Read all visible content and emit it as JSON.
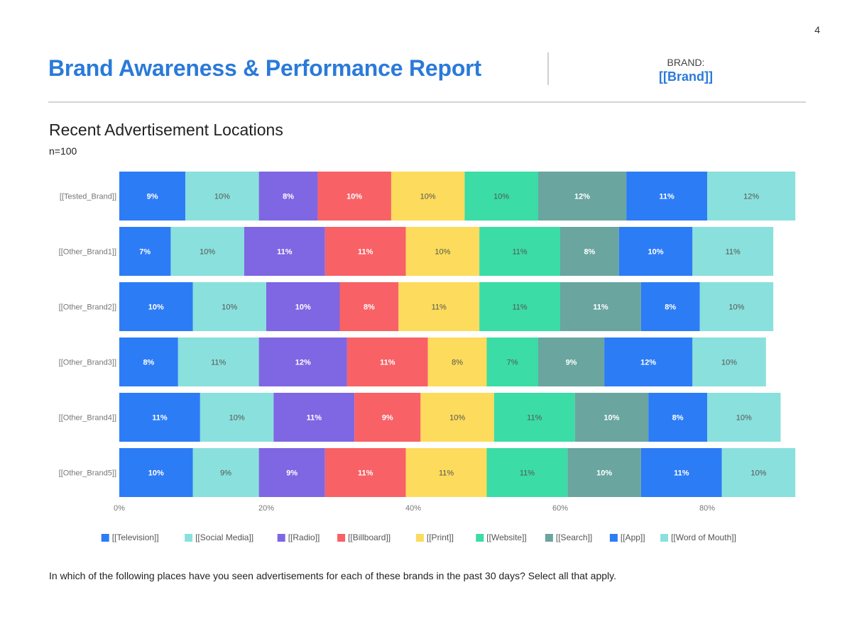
{
  "page_number": "4",
  "header": {
    "title": "Brand Awareness & Performance Report",
    "brand_label": "BRAND:",
    "brand_value": "[[Brand]]"
  },
  "section": {
    "title": "Recent Advertisement Locations",
    "sample": "n=100"
  },
  "question": "In which of the following places have you seen advertisements for each of these brands in the past 30 days? Select all that apply.",
  "chart_data": {
    "type": "bar",
    "orientation": "horizontal",
    "stacked": true,
    "categories": [
      "[[Tested_Brand]]",
      "[[Other_Brand1]]",
      "[[Other_Brand2]]",
      "[[Other_Brand3]]",
      "[[Other_Brand4]]",
      "[[Other_Brand5]]"
    ],
    "series": [
      {
        "name": "[[Television]]",
        "color": "#2c7cf6",
        "values": [
          9,
          7,
          10,
          8,
          11,
          10
        ]
      },
      {
        "name": "[[Social Media]]",
        "color": "#8ae0dc",
        "values": [
          10,
          10,
          10,
          11,
          10,
          9
        ]
      },
      {
        "name": "[[Radio]]",
        "color": "#7f66e3",
        "values": [
          8,
          11,
          10,
          12,
          11,
          9
        ]
      },
      {
        "name": "[[Billboard]]",
        "color": "#f86165",
        "values": [
          10,
          11,
          8,
          11,
          9,
          11
        ]
      },
      {
        "name": "[[Print]]",
        "color": "#fddb5c",
        "values": [
          10,
          10,
          11,
          8,
          10,
          11
        ]
      },
      {
        "name": "[[Website]]",
        "color": "#3bdca6",
        "values": [
          10,
          11,
          11,
          7,
          11,
          11
        ]
      },
      {
        "name": "[[Search]]",
        "color": "#6aa59f",
        "values": [
          12,
          8,
          11,
          9,
          10,
          10
        ]
      },
      {
        "name": "[[App]]",
        "color": "#2c7cf6",
        "values": [
          11,
          10,
          8,
          12,
          8,
          11
        ]
      },
      {
        "name": "[[Word of Mouth]]",
        "color": "#8ae0dc",
        "values": [
          12,
          11,
          10,
          10,
          10,
          10
        ]
      }
    ],
    "xlim": [
      0,
      100
    ],
    "x_ticks": [
      "0%",
      "20%",
      "40%",
      "60%",
      "80%"
    ],
    "x_tick_values": [
      0,
      20,
      40,
      60,
      80
    ],
    "legend_position": "bottom",
    "data_label_format": "percent",
    "grid": false
  }
}
